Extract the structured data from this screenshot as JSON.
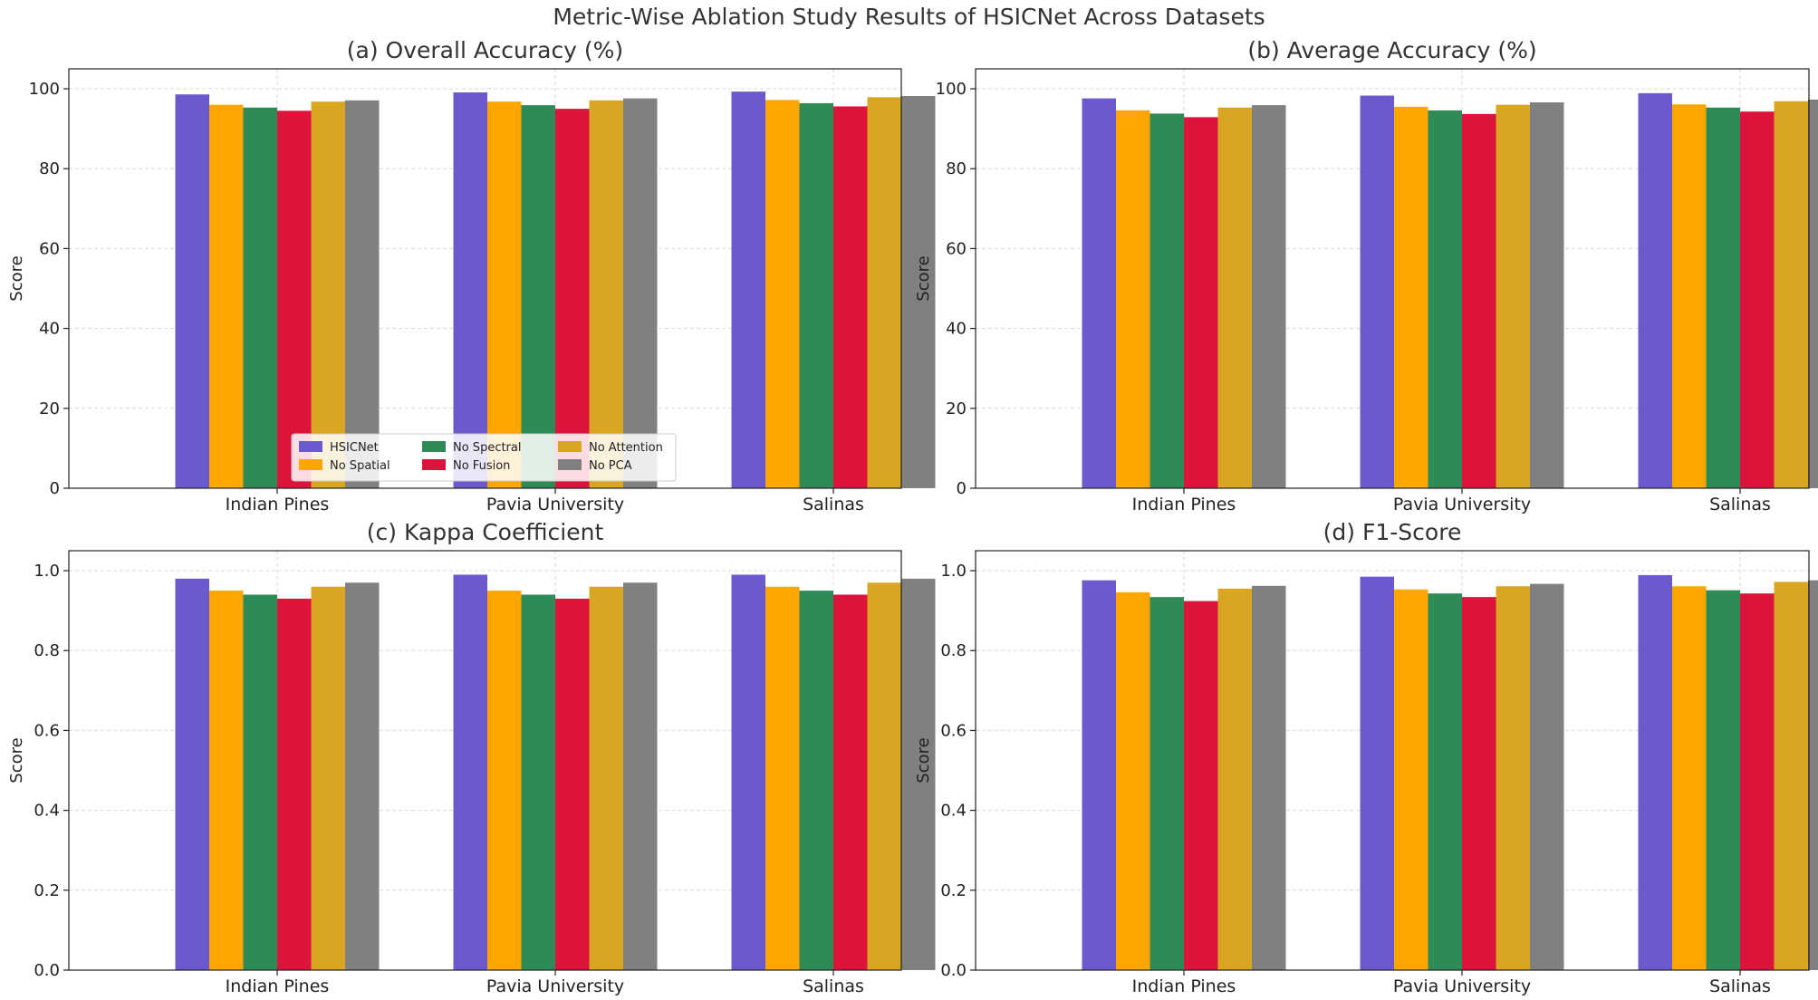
{
  "figure": {
    "title": "Metric-Wise Ablation Study Results of HSICNet Across Datasets"
  },
  "colors": {
    "HSICNet": "#6a5acd",
    "No Spatial": "#ffa500",
    "No Spectral": "#2e8b57",
    "No Fusion": "#dc143c",
    "No Attention": "#daa520",
    "No PCA": "#808080"
  },
  "legend": {
    "entries": [
      "HSICNet",
      "No Spatial",
      "No Spectral",
      "No Fusion",
      "No Attention",
      "No PCA"
    ],
    "location": "lower-center of panel (a)"
  },
  "chart_data": [
    {
      "type": "bar",
      "title": "(a) Overall Accuracy (%)",
      "xlabel": "",
      "ylabel": "Score",
      "categories": [
        "Indian Pines",
        "Pavia University",
        "Salinas"
      ],
      "ylim": [
        0,
        105
      ],
      "yticks": [
        0,
        20,
        40,
        60,
        80,
        100
      ],
      "ytick_labels": [
        "0",
        "20",
        "40",
        "60",
        "80",
        "100"
      ],
      "grid": true,
      "series": [
        {
          "name": "HSICNet",
          "values": [
            98.6,
            99.1,
            99.3
          ]
        },
        {
          "name": "No Spatial",
          "values": [
            96.0,
            96.8,
            97.2
          ]
        },
        {
          "name": "No Spectral",
          "values": [
            95.3,
            95.9,
            96.4
          ]
        },
        {
          "name": "No Fusion",
          "values": [
            94.5,
            95.0,
            95.6
          ]
        },
        {
          "name": "No Attention",
          "values": [
            96.8,
            97.1,
            97.9
          ]
        },
        {
          "name": "No PCA",
          "values": [
            97.1,
            97.6,
            98.2
          ]
        }
      ]
    },
    {
      "type": "bar",
      "title": "(b) Average Accuracy (%)",
      "xlabel": "",
      "ylabel": "Score",
      "categories": [
        "Indian Pines",
        "Pavia University",
        "Salinas"
      ],
      "ylim": [
        0,
        105
      ],
      "yticks": [
        0,
        20,
        40,
        60,
        80,
        100
      ],
      "ytick_labels": [
        "0",
        "20",
        "40",
        "60",
        "80",
        "100"
      ],
      "grid": true,
      "series": [
        {
          "name": "HSICNet",
          "values": [
            97.6,
            98.3,
            98.9
          ]
        },
        {
          "name": "No Spatial",
          "values": [
            94.6,
            95.5,
            96.1
          ]
        },
        {
          "name": "No Spectral",
          "values": [
            93.8,
            94.6,
            95.3
          ]
        },
        {
          "name": "No Fusion",
          "values": [
            92.9,
            93.7,
            94.3
          ]
        },
        {
          "name": "No Attention",
          "values": [
            95.3,
            96.0,
            96.9
          ]
        },
        {
          "name": "No PCA",
          "values": [
            95.9,
            96.6,
            97.3
          ]
        }
      ]
    },
    {
      "type": "bar",
      "title": "(c) Kappa Coefficient",
      "xlabel": "",
      "ylabel": "Score",
      "categories": [
        "Indian Pines",
        "Pavia University",
        "Salinas"
      ],
      "ylim": [
        0,
        1.05
      ],
      "yticks": [
        0,
        0.2,
        0.4,
        0.6,
        0.8,
        1.0
      ],
      "ytick_labels": [
        "0.0",
        "0.2",
        "0.4",
        "0.6",
        "0.8",
        "1.0"
      ],
      "grid": true,
      "series": [
        {
          "name": "HSICNet",
          "values": [
            0.98,
            0.99,
            0.99
          ]
        },
        {
          "name": "No Spatial",
          "values": [
            0.95,
            0.95,
            0.96
          ]
        },
        {
          "name": "No Spectral",
          "values": [
            0.94,
            0.94,
            0.95
          ]
        },
        {
          "name": "No Fusion",
          "values": [
            0.93,
            0.93,
            0.94
          ]
        },
        {
          "name": "No Attention",
          "values": [
            0.96,
            0.96,
            0.97
          ]
        },
        {
          "name": "No PCA",
          "values": [
            0.97,
            0.97,
            0.98
          ]
        }
      ]
    },
    {
      "type": "bar",
      "title": "(d) F1-Score",
      "xlabel": "",
      "ylabel": "Score",
      "categories": [
        "Indian Pines",
        "Pavia University",
        "Salinas"
      ],
      "ylim": [
        0,
        1.05
      ],
      "yticks": [
        0,
        0.2,
        0.4,
        0.6,
        0.8,
        1.0
      ],
      "ytick_labels": [
        "0.0",
        "0.2",
        "0.4",
        "0.6",
        "0.8",
        "1.0"
      ],
      "grid": true,
      "series": [
        {
          "name": "HSICNet",
          "values": [
            0.976,
            0.985,
            0.989
          ]
        },
        {
          "name": "No Spatial",
          "values": [
            0.946,
            0.953,
            0.961
          ]
        },
        {
          "name": "No Spectral",
          "values": [
            0.934,
            0.943,
            0.951
          ]
        },
        {
          "name": "No Fusion",
          "values": [
            0.924,
            0.934,
            0.943
          ]
        },
        {
          "name": "No Attention",
          "values": [
            0.955,
            0.961,
            0.972
          ]
        },
        {
          "name": "No PCA",
          "values": [
            0.962,
            0.967,
            0.976
          ]
        }
      ]
    }
  ]
}
